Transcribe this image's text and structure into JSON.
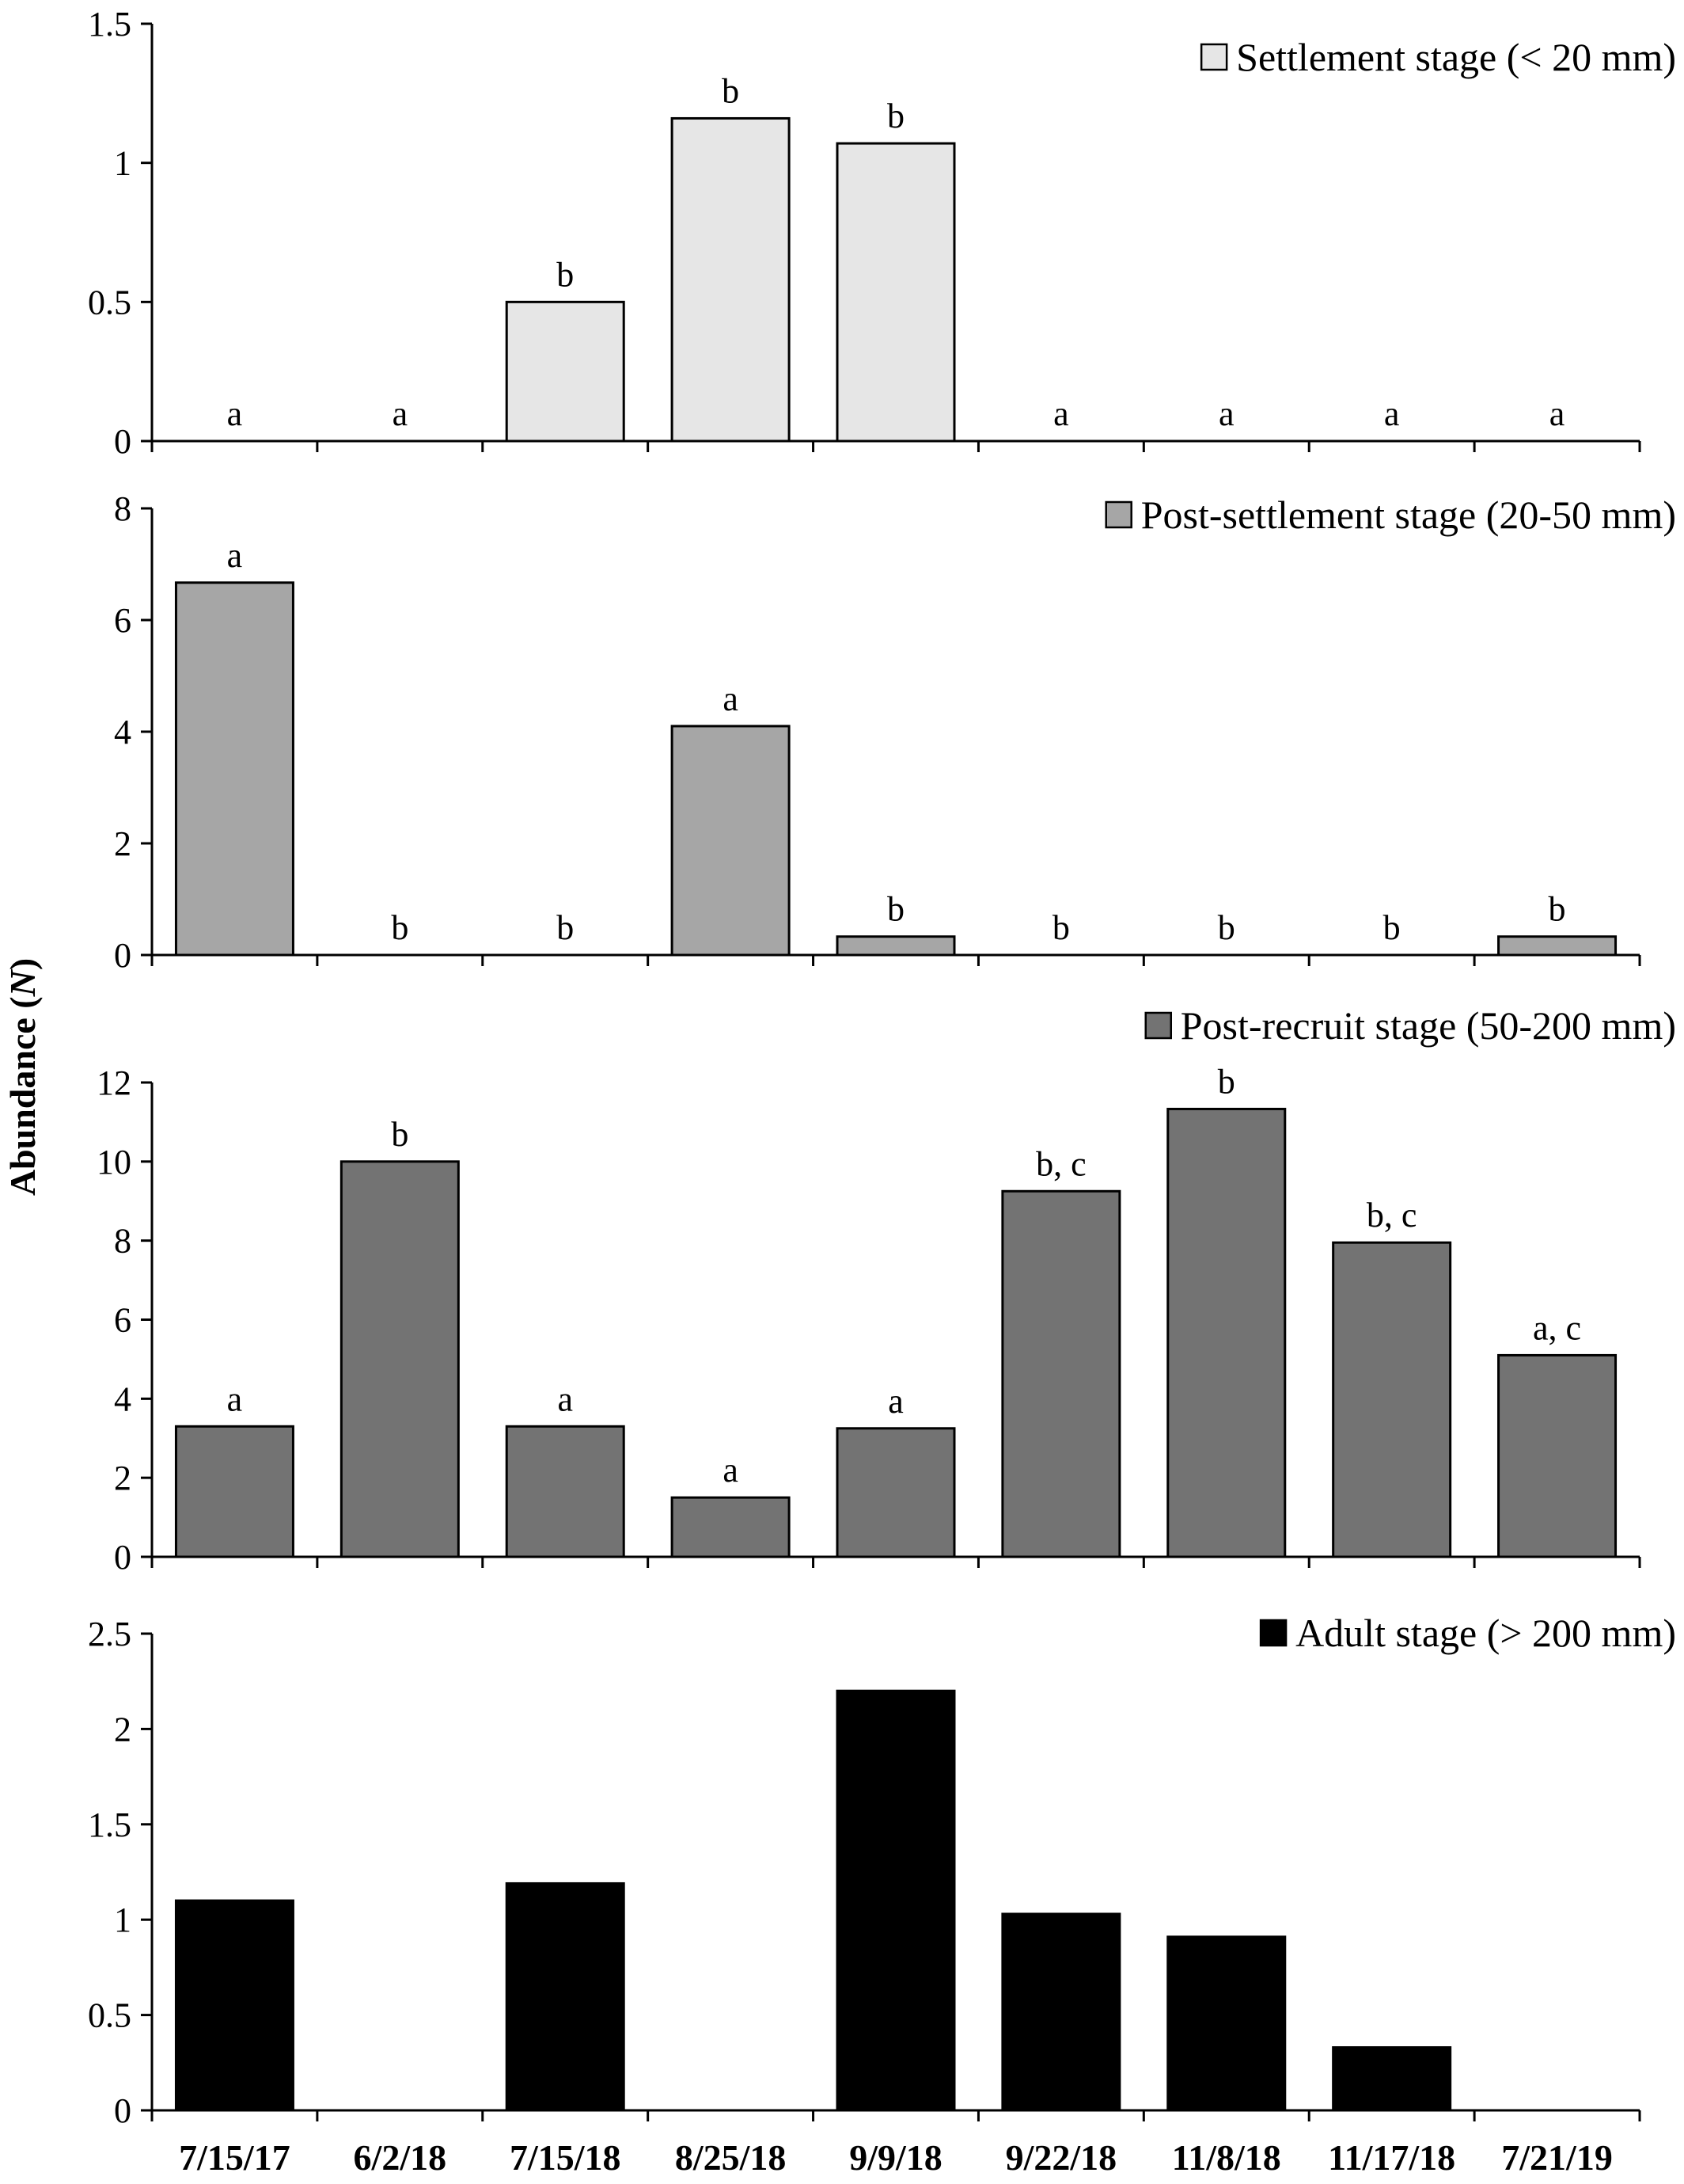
{
  "chart_data": {
    "type": "bar",
    "ylabel_prefix": "Abundance (",
    "ylabel_var": "N",
    "ylabel_suffix": ")",
    "categories": [
      "7/15/17",
      "6/2/18",
      "7/15/18",
      "8/25/18",
      "9/9/18",
      "9/22/18",
      "11/8/18",
      "11/17/18",
      "7/21/19"
    ],
    "panels": [
      {
        "name": "Settlement stage (< 20 mm)",
        "color": "#e6e6e6",
        "ylim": [
          0,
          1.5
        ],
        "yticks": [
          "0",
          "0.5",
          "1",
          "1.5"
        ],
        "values": [
          0,
          0,
          0.5,
          1.16,
          1.07,
          0,
          0,
          0,
          0
        ],
        "letters": [
          "a",
          "a",
          "b",
          "b",
          "b",
          "a",
          "a",
          "a",
          "a"
        ]
      },
      {
        "name": "Post-settlement stage (20-50 mm)",
        "color": "#a6a6a6",
        "ylim": [
          0,
          8
        ],
        "yticks": [
          "0",
          "2",
          "4",
          "6",
          "8"
        ],
        "values": [
          6.67,
          0,
          0,
          4.1,
          0.33,
          0,
          0,
          0,
          0.33
        ],
        "letters": [
          "a",
          "b",
          "b",
          "a",
          "b",
          "b",
          "b",
          "b",
          "b"
        ]
      },
      {
        "name": "Post-recruit stage (50-200 mm)",
        "color": "#737373",
        "ylim": [
          0,
          12
        ],
        "yticks": [
          "0",
          "2",
          "4",
          "6",
          "8",
          "10",
          "12"
        ],
        "values": [
          3.3,
          10.0,
          3.3,
          1.5,
          3.25,
          9.25,
          11.33,
          7.95,
          5.1
        ],
        "letters": [
          "a",
          "b",
          "a",
          "a",
          "a",
          "b, c",
          "b",
          "b, c",
          "a, c"
        ]
      },
      {
        "name": "Adult stage (> 200 mm)",
        "color": "#000000",
        "ylim": [
          0,
          2.5
        ],
        "yticks": [
          "0",
          "0.5",
          "1",
          "1.5",
          "2",
          "2.5"
        ],
        "values": [
          1.1,
          0,
          1.19,
          0,
          2.2,
          1.03,
          0.91,
          0.33,
          0
        ],
        "letters": [
          "",
          "",
          "",
          "",
          "",
          "",
          "",
          "",
          ""
        ]
      }
    ]
  }
}
